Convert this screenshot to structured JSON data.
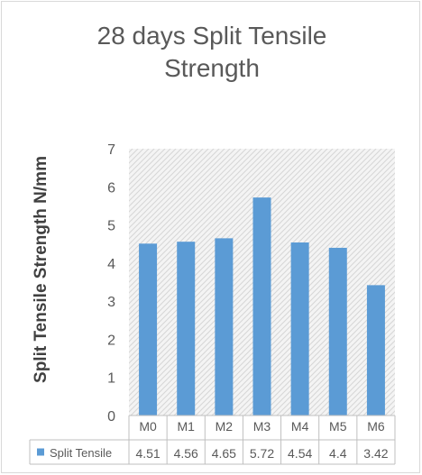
{
  "chart_data": {
    "type": "bar",
    "title_lines": [
      "28 days Split Tensile",
      "Strength"
    ],
    "xlabel": "",
    "ylabel": "Split Tensile  Strength N/mm",
    "categories": [
      "M0",
      "M1",
      "M2",
      "M3",
      "M4",
      "M5",
      "M6"
    ],
    "series": [
      {
        "name": "Split Tensile",
        "values": [
          4.51,
          4.56,
          4.65,
          5.72,
          4.54,
          4.4,
          3.42
        ],
        "value_labels": [
          "4.51",
          "4.56",
          "4.65",
          "5.72",
          "4.54",
          "4.4",
          "3.42"
        ],
        "color": "#5b9bd5"
      }
    ],
    "yticks": [
      "0",
      "1",
      "2",
      "3",
      "4",
      "5",
      "6",
      "7"
    ],
    "ylim": [
      0,
      7
    ],
    "grid": false,
    "plot_background": "hatched light gray",
    "legend": "data table below plot"
  }
}
